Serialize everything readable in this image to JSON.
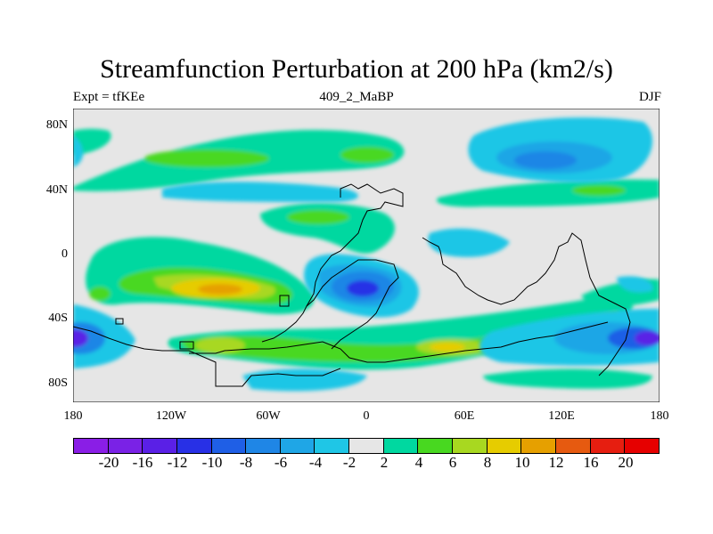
{
  "title": "Streamfunction Perturbation at 200 hPa (km2/s)",
  "subtitle_left": "Expt = tfKEe",
  "subtitle_center": "409_2_MaBP",
  "subtitle_right": "DJF",
  "y_axis": {
    "labels": [
      "80N",
      "40N",
      "0",
      "40S",
      "80S"
    ],
    "values": [
      80,
      40,
      0,
      -40,
      -80
    ],
    "range": [
      -90,
      90
    ]
  },
  "x_axis": {
    "labels": [
      "180",
      "120W",
      "60W",
      "0",
      "60E",
      "120E",
      "180"
    ],
    "values": [
      -180,
      -120,
      -60,
      0,
      60,
      120,
      180
    ],
    "range": [
      -180,
      180
    ]
  },
  "colorbar": {
    "labels": [
      "-20",
      "-16",
      "-12",
      "-10",
      "-8",
      "-6",
      "-4",
      "-2",
      "2",
      "4",
      "6",
      "8",
      "10",
      "12",
      "16",
      "20"
    ],
    "colors": [
      "#8a1ee6",
      "#7a22e6",
      "#5a20e6",
      "#2830e6",
      "#1f5fe6",
      "#1f86e6",
      "#1fa6e6",
      "#1fc6e6",
      "#e6e6e6",
      "#00d8a0",
      "#48d820",
      "#a8d820",
      "#e6cc00",
      "#e6a000",
      "#e65a10",
      "#e61e10",
      "#e60000"
    ]
  },
  "chart_data": {
    "type": "heatmap",
    "title": "Streamfunction Perturbation at 200 hPa (km2/s)",
    "xlim": [
      -180,
      180
    ],
    "ylim": [
      -90,
      90
    ],
    "levels": [
      -20,
      -16,
      -12,
      -10,
      -8,
      -6,
      -4,
      -2,
      2,
      4,
      6,
      8,
      10,
      12,
      16,
      20
    ],
    "features": [
      {
        "lon": -90,
        "lat": -22,
        "value": 11
      },
      {
        "lon": -105,
        "lat": 65,
        "value": 4
      },
      {
        "lon": -90,
        "lat": 25,
        "value": 4
      },
      {
        "lon": 0,
        "lat": -20,
        "value": -10
      },
      {
        "lon": 160,
        "lat": 57,
        "value": -6
      },
      {
        "lon": 165,
        "lat": -53,
        "value": -16
      },
      {
        "lon": -175,
        "lat": -52,
        "value": -12
      },
      {
        "lon": 45,
        "lat": -55,
        "value": 8
      },
      {
        "lon": -85,
        "lat": -55,
        "value": 7
      },
      {
        "lon": 140,
        "lat": 40,
        "value": 4
      },
      {
        "lon": -25,
        "lat": -75,
        "value": -4
      },
      {
        "lon": 100,
        "lat": -65,
        "value": -4
      }
    ]
  }
}
